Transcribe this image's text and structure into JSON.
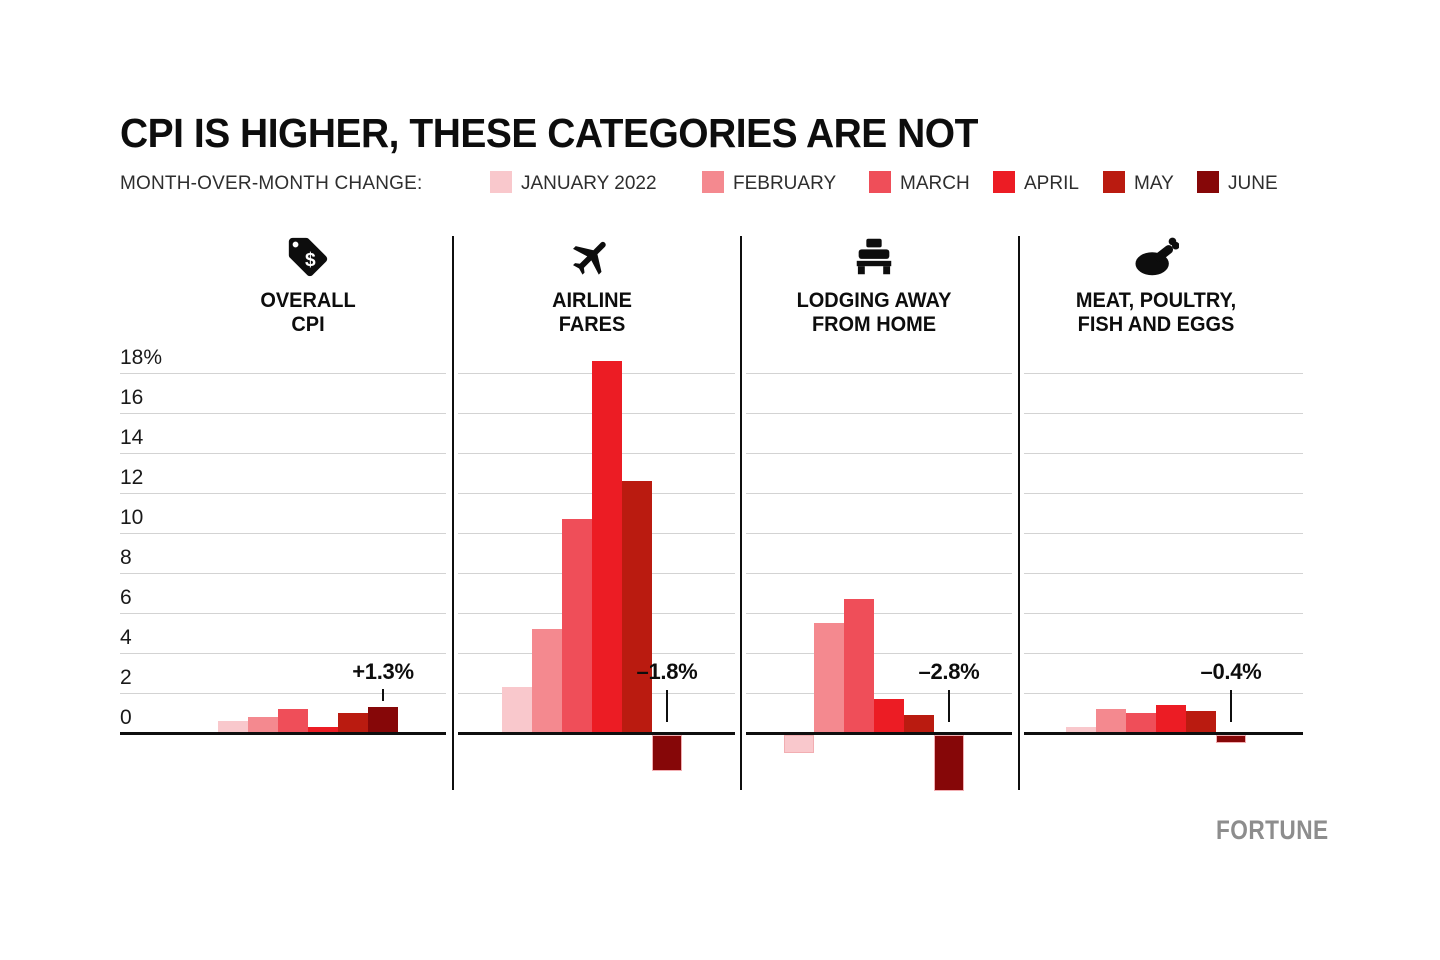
{
  "title": "CPI IS HIGHER, THESE CATEGORIES ARE NOT",
  "legend": {
    "label": "MONTH-OVER-MONTH CHANGE:",
    "items": [
      {
        "label": "JANUARY 2022",
        "color": "#f9c8cc"
      },
      {
        "label": "FEBRUARY",
        "color": "#f4898f"
      },
      {
        "label": "MARCH",
        "color": "#ef4e59"
      },
      {
        "label": "APRIL",
        "color": "#ec1c24"
      },
      {
        "label": "MAY",
        "color": "#ba1b10"
      },
      {
        "label": "JUNE",
        "color": "#860708"
      }
    ]
  },
  "chart_data": {
    "type": "bar",
    "title": "CPI IS HIGHER, THESE CATEGORIES ARE NOT",
    "subtitle": "MONTH-OVER-MONTH CHANGE:",
    "unit": "percent",
    "y_axis": {
      "tick_labels": [
        "18%",
        "16",
        "14",
        "12",
        "10",
        "8",
        "6",
        "4",
        "2",
        "0"
      ],
      "tick_values": [
        18,
        16,
        14,
        12,
        10,
        8,
        6,
        4,
        2,
        0
      ],
      "gridlines": true,
      "baseline": 0
    },
    "series_months": [
      "JANUARY 2022",
      "FEBRUARY",
      "MARCH",
      "APRIL",
      "MAY",
      "JUNE"
    ],
    "series_colors": [
      "#f9c8cc",
      "#f4898f",
      "#ef4e59",
      "#ec1c24",
      "#ba1b10",
      "#860708"
    ],
    "panels": [
      {
        "category_lines": [
          "OVERALL",
          "CPI"
        ],
        "icon": "price-tag-icon",
        "values": [
          0.6,
          0.8,
          1.2,
          0.3,
          1.0,
          1.3
        ],
        "annotation": "+1.3%",
        "annotated_month": "JUNE"
      },
      {
        "category_lines": [
          "AIRLINE",
          "FARES"
        ],
        "icon": "airplane-icon",
        "values": [
          2.3,
          5.2,
          10.7,
          18.6,
          12.6,
          -1.8
        ],
        "annotation": "–1.8%",
        "annotated_month": "JUNE"
      },
      {
        "category_lines": [
          "LODGING AWAY",
          "FROM HOME"
        ],
        "icon": "bed-icon",
        "values": [
          -0.9,
          5.5,
          6.7,
          1.7,
          0.9,
          -2.8
        ],
        "annotation": "–2.8%",
        "annotated_month": "JUNE"
      },
      {
        "category_lines": [
          "MEAT, POULTRY,",
          "FISH AND EGGS"
        ],
        "icon": "poultry-icon",
        "values": [
          0.3,
          1.2,
          1.0,
          1.4,
          1.1,
          -0.4
        ],
        "annotation": "–0.4%",
        "annotated_month": "JUNE"
      }
    ]
  },
  "branding": {
    "logo": "FORTUNE"
  }
}
